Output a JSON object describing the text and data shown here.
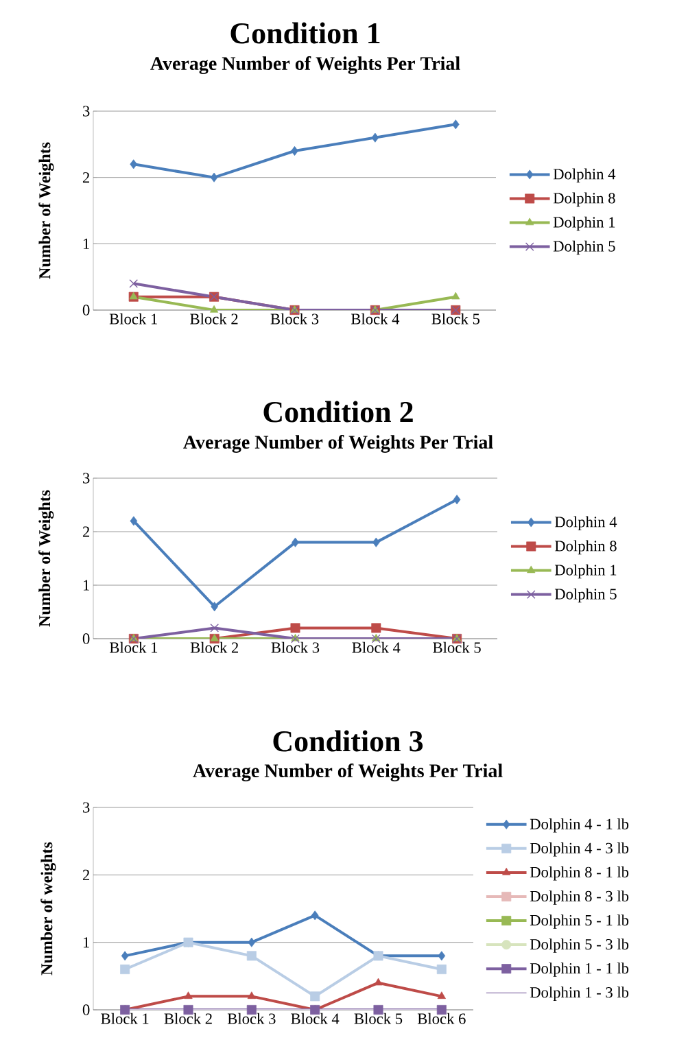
{
  "chart_data": [
    {
      "type": "line",
      "title": "Condition 1",
      "subtitle": "Average Number of Weights Per Trial",
      "ylabel": "Number of Weights",
      "categories": [
        "Block 1",
        "Block 2",
        "Block 3",
        "Block 4",
        "Block 5"
      ],
      "ylim": [
        0,
        3
      ],
      "yticks": [
        0,
        1,
        2,
        3
      ],
      "grid": "y",
      "legend": "right",
      "line_style": "solid",
      "series": [
        {
          "name": "Dolphin 4",
          "color": "#4a7ebb",
          "marker": "diamond",
          "values": [
            2.2,
            2.0,
            2.4,
            2.6,
            2.8
          ]
        },
        {
          "name": "Dolphin 8",
          "color": "#be4b48",
          "marker": "square",
          "values": [
            0.2,
            0.2,
            0,
            0,
            0
          ]
        },
        {
          "name": "Dolphin 1",
          "color": "#98b954",
          "marker": "triangle",
          "values": [
            0.2,
            0,
            0,
            0,
            0.2
          ]
        },
        {
          "name": "Dolphin 5",
          "color": "#7d60a0",
          "marker": "cross",
          "values": [
            0.4,
            0.2,
            0,
            0,
            0
          ]
        }
      ]
    },
    {
      "type": "line",
      "title": "Condition 2",
      "subtitle": "Average Number of Weights Per Trial",
      "ylabel": "Number of Weights",
      "categories": [
        "Block 1",
        "Block 2",
        "Block 3",
        "Block 4",
        "Block 5"
      ],
      "ylim": [
        0,
        3
      ],
      "yticks": [
        0,
        1,
        2,
        3
      ],
      "grid": "y",
      "legend": "right",
      "line_style": "solid",
      "series": [
        {
          "name": "Dolphin 4",
          "color": "#4a7ebb",
          "marker": "diamond",
          "values": [
            2.2,
            0.6,
            1.8,
            1.8,
            2.6
          ]
        },
        {
          "name": "Dolphin 8",
          "color": "#be4b48",
          "marker": "square",
          "values": [
            0,
            0,
            0.2,
            0.2,
            0
          ]
        },
        {
          "name": "Dolphin 1",
          "color": "#98b954",
          "marker": "triangle",
          "values": [
            0,
            0,
            0,
            0,
            0
          ]
        },
        {
          "name": "Dolphin 5",
          "color": "#7d60a0",
          "marker": "cross",
          "values": [
            0,
            0.2,
            0,
            0,
            0
          ]
        }
      ]
    },
    {
      "type": "line",
      "title": "Condition 3",
      "subtitle": "Average Number of Weights Per Trial",
      "ylabel": "Number of weights",
      "categories": [
        "Block 1",
        "Block 2",
        "Block 3",
        "Block 4",
        "Block 5",
        "Block 6"
      ],
      "ylim": [
        0,
        3
      ],
      "yticks": [
        0,
        1,
        2,
        3
      ],
      "grid": "y",
      "legend": "right",
      "line_style": "solid",
      "series": [
        {
          "name": "Dolphin 4 - 1 lb",
          "color": "#4a7ebb",
          "marker": "diamond",
          "values": [
            0.8,
            1.0,
            1.0,
            1.4,
            0.8,
            0.8
          ]
        },
        {
          "name": "Dolphin 4 - 3 lb",
          "color": "#b9cde5",
          "marker": "square",
          "values": [
            0.6,
            1.0,
            0.8,
            0.2,
            0.8,
            0.6
          ]
        },
        {
          "name": "Dolphin 8 - 1 lb",
          "color": "#be4b48",
          "marker": "triangle",
          "values": [
            0,
            0.2,
            0.2,
            0,
            0.4,
            0.2
          ]
        },
        {
          "name": "Dolphin 8 - 3 lb",
          "color": "#e6b9b8",
          "marker": "square",
          "values": [
            null,
            null,
            null,
            null,
            null,
            null
          ]
        },
        {
          "name": "Dolphin 5 - 1 lb",
          "color": "#98b954",
          "marker": "square",
          "values": [
            null,
            null,
            null,
            null,
            null,
            null
          ]
        },
        {
          "name": "Dolphin 5 - 3 lb",
          "color": "#d7e4bd",
          "marker": "circle",
          "values": [
            null,
            null,
            null,
            null,
            null,
            null
          ]
        },
        {
          "name": "Dolphin 1 - 1 lb",
          "color": "#7d60a0",
          "marker": "square",
          "values": [
            0,
            0,
            0,
            0,
            0,
            0
          ]
        },
        {
          "name": "Dolphin 1 - 3 lb",
          "color": "#ccc1da",
          "marker": "none",
          "values": [
            0,
            0,
            0,
            0,
            0,
            0
          ]
        }
      ]
    }
  ]
}
